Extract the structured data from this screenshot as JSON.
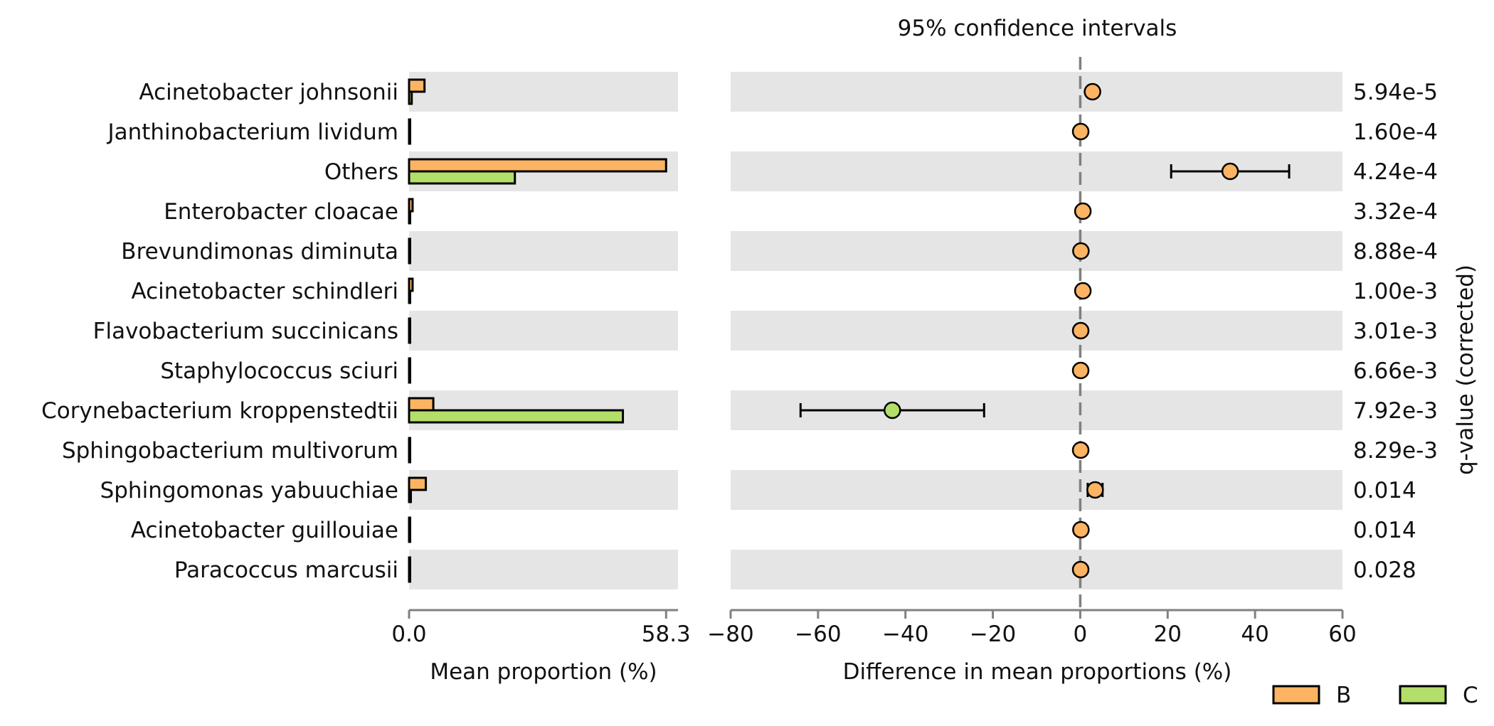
{
  "chart_data": {
    "type": "bar+forest",
    "title": "95% confidence intervals",
    "colors": {
      "B": "#fdb462",
      "C": "#b3de69",
      "stripe": "#e5e5e5",
      "zero_line": "#808080",
      "axis": "#808080"
    },
    "legend": {
      "position": "bottom-right",
      "items": [
        {
          "name": "B",
          "color": "#fdb462"
        },
        {
          "name": "C",
          "color": "#b3de69"
        }
      ]
    },
    "left_panel": {
      "xlabel": "Mean proportion (%)",
      "xlim": [
        0,
        61
      ],
      "ticks": [
        0,
        58.3
      ],
      "tick_labels": [
        "0.0",
        "58.3"
      ]
    },
    "right_panel": {
      "xlabel": "Difference in mean proportions (%)",
      "xlim": [
        -80,
        60
      ],
      "ticks": [
        -80,
        -60,
        -40,
        -20,
        0,
        20,
        40,
        60
      ],
      "tick_labels": [
        "−80",
        "−60",
        "−40",
        "−20",
        "0",
        "20",
        "40",
        "60"
      ]
    },
    "qvalue_label": "q-value (corrected)",
    "categories": [
      "Acinetobacter johnsonii",
      "Janthinobacterium lividum",
      "Others",
      "Enterobacter cloacae",
      "Brevundimonas diminuta",
      "Acinetobacter schindleri",
      "Flavobacterium succinicans",
      "Staphylococcus sciuri",
      "Corynebacterium kroppenstedtii",
      "Sphingobacterium multivorum",
      "Sphingomonas yabuuchiae",
      "Acinetobacter guillouiae",
      "Paracoccus marcusii"
    ],
    "series": [
      {
        "name": "B",
        "values": [
          3.5,
          0.15,
          58.3,
          0.8,
          0.2,
          0.8,
          0.15,
          0.15,
          5.5,
          0.15,
          3.8,
          0.2,
          0.15
        ]
      },
      {
        "name": "C",
        "values": [
          0.6,
          0.05,
          24.0,
          0.2,
          0.05,
          0.2,
          0.05,
          0.05,
          48.5,
          0.05,
          0.4,
          0.05,
          0.05
        ]
      }
    ],
    "difference": [
      2.8,
      0.1,
      34.3,
      0.6,
      0.15,
      0.6,
      0.1,
      0.1,
      -43.0,
      0.1,
      3.4,
      0.15,
      0.1
    ],
    "ci_low": [
      1.8,
      -0.4,
      20.8,
      0.2,
      -0.2,
      0.2,
      -0.2,
      -0.2,
      -64.0,
      -0.2,
      1.7,
      -0.2,
      -0.3
    ],
    "ci_high": [
      3.8,
      0.6,
      47.8,
      1.0,
      0.5,
      1.0,
      0.4,
      0.4,
      -22.0,
      0.4,
      5.1,
      0.5,
      0.5
    ],
    "dot_colors": [
      "B",
      "B",
      "B",
      "B",
      "B",
      "B",
      "B",
      "B",
      "C",
      "B",
      "B",
      "B",
      "B"
    ],
    "q_values": [
      "5.94e-5",
      "1.60e-4",
      "4.24e-4",
      "3.32e-4",
      "8.88e-4",
      "1.00e-3",
      "3.01e-3",
      "6.66e-3",
      "7.92e-3",
      "8.29e-3",
      "0.014",
      "0.014",
      "0.028"
    ]
  }
}
